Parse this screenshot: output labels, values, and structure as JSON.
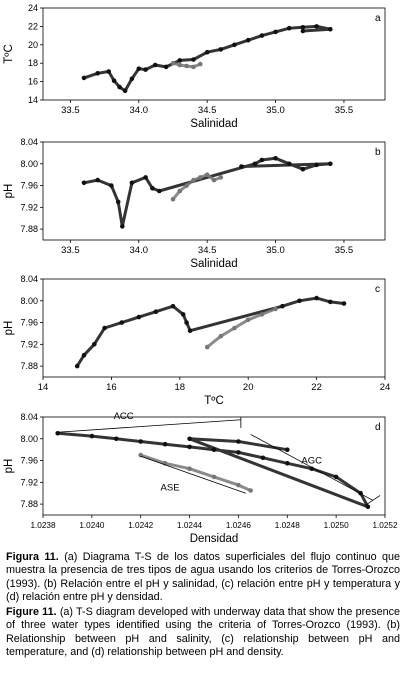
{
  "chart_data": [
    {
      "type": "scatter",
      "panel_letter": "a",
      "xlabel": "Salinidad",
      "ylabel": "TºC",
      "xlim": [
        33.3,
        35.8
      ],
      "ylim": [
        14,
        24
      ],
      "xticks": [
        "33.5",
        "34.0",
        "34.5",
        "35.0",
        "35.5"
      ],
      "yticks": [
        "14",
        "16",
        "18",
        "20",
        "22",
        "24"
      ],
      "series": [
        {
          "color": "#111111",
          "points": [
            [
              33.6,
              16.4
            ],
            [
              33.7,
              16.9
            ],
            [
              33.78,
              17.1
            ],
            [
              33.82,
              16.1
            ],
            [
              33.86,
              15.4
            ],
            [
              33.9,
              15.0
            ],
            [
              33.95,
              16.3
            ],
            [
              34.0,
              17.4
            ],
            [
              34.05,
              17.3
            ],
            [
              34.12,
              17.8
            ],
            [
              34.2,
              17.6
            ],
            [
              34.3,
              18.3
            ],
            [
              34.4,
              18.4
            ],
            [
              34.5,
              19.2
            ],
            [
              34.6,
              19.5
            ],
            [
              34.7,
              20.0
            ],
            [
              34.8,
              20.5
            ],
            [
              34.9,
              21.0
            ],
            [
              35.0,
              21.4
            ],
            [
              35.1,
              21.8
            ],
            [
              35.2,
              21.9
            ],
            [
              35.3,
              22.0
            ],
            [
              35.4,
              21.7
            ],
            [
              35.2,
              21.5
            ]
          ]
        },
        {
          "color": "#777777",
          "points": [
            [
              34.25,
              18.0
            ],
            [
              34.3,
              17.8
            ],
            [
              34.35,
              17.7
            ],
            [
              34.4,
              17.6
            ],
            [
              34.45,
              17.9
            ]
          ]
        }
      ]
    },
    {
      "type": "scatter",
      "panel_letter": "b",
      "xlabel": "Salinidad",
      "ylabel": "pH",
      "xlim": [
        33.3,
        35.8
      ],
      "ylim": [
        7.86,
        8.04
      ],
      "xticks": [
        "33.5",
        "34.0",
        "34.5",
        "35.0",
        "35.5"
      ],
      "yticks": [
        "7.88",
        "7.92",
        "7.96",
        "8.00",
        "8.04"
      ],
      "series": [
        {
          "color": "#111111",
          "points": [
            [
              33.6,
              7.965
            ],
            [
              33.7,
              7.97
            ],
            [
              33.8,
              7.96
            ],
            [
              33.85,
              7.93
            ],
            [
              33.88,
              7.885
            ],
            [
              33.95,
              7.965
            ],
            [
              34.05,
              7.975
            ],
            [
              34.1,
              7.955
            ],
            [
              34.15,
              7.95
            ],
            [
              34.85,
              8.0
            ],
            [
              34.9,
              8.007
            ],
            [
              35.0,
              8.01
            ],
            [
              35.1,
              8.0
            ],
            [
              35.2,
              7.99
            ],
            [
              35.3,
              7.998
            ],
            [
              35.4,
              8.0
            ],
            [
              34.75,
              7.995
            ]
          ]
        },
        {
          "color": "#777777",
          "points": [
            [
              34.25,
              7.935
            ],
            [
              34.3,
              7.95
            ],
            [
              34.35,
              7.96
            ],
            [
              34.4,
              7.97
            ],
            [
              34.45,
              7.975
            ],
            [
              34.5,
              7.98
            ],
            [
              34.55,
              7.97
            ],
            [
              34.6,
              7.975
            ]
          ]
        }
      ]
    },
    {
      "type": "scatter",
      "panel_letter": "c",
      "xlabel": "TºC",
      "ylabel": "pH",
      "xlim": [
        14,
        24
      ],
      "ylim": [
        7.86,
        8.04
      ],
      "xticks": [
        "14",
        "16",
        "18",
        "20",
        "22",
        "24"
      ],
      "yticks": [
        "7.88",
        "7.92",
        "7.96",
        "8.00",
        "8.04"
      ],
      "series": [
        {
          "color": "#111111",
          "points": [
            [
              15.0,
              7.88
            ],
            [
              15.2,
              7.9
            ],
            [
              15.5,
              7.92
            ],
            [
              15.8,
              7.95
            ],
            [
              16.3,
              7.96
            ],
            [
              16.8,
              7.97
            ],
            [
              17.3,
              7.98
            ],
            [
              17.8,
              7.99
            ],
            [
              18.1,
              7.975
            ],
            [
              18.2,
              7.96
            ],
            [
              18.3,
              7.945
            ],
            [
              21.0,
              7.99
            ],
            [
              21.5,
              8.0
            ],
            [
              22.0,
              8.005
            ],
            [
              22.4,
              7.998
            ],
            [
              22.8,
              7.995
            ]
          ]
        },
        {
          "color": "#777777",
          "points": [
            [
              18.8,
              7.915
            ],
            [
              19.2,
              7.935
            ],
            [
              19.6,
              7.95
            ],
            [
              20.0,
              7.965
            ],
            [
              20.4,
              7.975
            ],
            [
              20.8,
              7.985
            ]
          ]
        }
      ]
    },
    {
      "type": "scatter",
      "panel_letter": "d",
      "xlabel": "Densidad",
      "ylabel": "pH",
      "xlim": [
        1.0238,
        1.0252
      ],
      "ylim": [
        7.86,
        8.04
      ],
      "xticks": [
        "1.0238",
        "1.0240",
        "1.0242",
        "1.0244",
        "1.0246",
        "1.0248",
        "1.0250",
        "1.0252"
      ],
      "yticks": [
        "7.88",
        "7.92",
        "7.96",
        "8.00",
        "8.04"
      ],
      "annotations": [
        "ACC",
        "AGC",
        "ASE"
      ],
      "series": [
        {
          "color": "#111111",
          "points": [
            [
              1.02386,
              8.01
            ],
            [
              1.024,
              8.005
            ],
            [
              1.0241,
              8.0
            ],
            [
              1.0242,
              7.995
            ],
            [
              1.0243,
              7.99
            ],
            [
              1.0244,
              7.985
            ],
            [
              1.0245,
              7.98
            ],
            [
              1.0246,
              7.975
            ],
            [
              1.0247,
              7.965
            ],
            [
              1.0248,
              7.955
            ],
            [
              1.0249,
              7.945
            ],
            [
              1.025,
              7.93
            ],
            [
              1.0251,
              7.9
            ],
            [
              1.02513,
              7.875
            ],
            [
              1.0244,
              8.0
            ],
            [
              1.0246,
              7.995
            ],
            [
              1.0248,
              7.98
            ]
          ]
        },
        {
          "color": "#777777",
          "points": [
            [
              1.0242,
              7.97
            ],
            [
              1.0243,
              7.955
            ],
            [
              1.0244,
              7.945
            ],
            [
              1.0245,
              7.93
            ],
            [
              1.0246,
              7.915
            ],
            [
              1.02465,
              7.905
            ]
          ]
        }
      ]
    }
  ],
  "caption": {
    "es_label": "Figura 11.",
    "es_text": "(a) Diagrama T-S de los datos superficiales del flujo continuo que muestra la presencia de tres tipos de agua usando los criterios de Torres-Orozco (1993). (b) Relación entre el pH y salinidad, (c) relación entre pH y temperatura y (d) relación entre pH y densidad.",
    "en_label": "Figure 11.",
    "en_text": "(a) T-S diagram developed with underway data that show the presence of three water types identified using the criteria of Torres-Orozco (1993). (b) Relationship between pH and salinity, (c) relationship between pH and temperature, and (d) relationship between pH and density."
  }
}
